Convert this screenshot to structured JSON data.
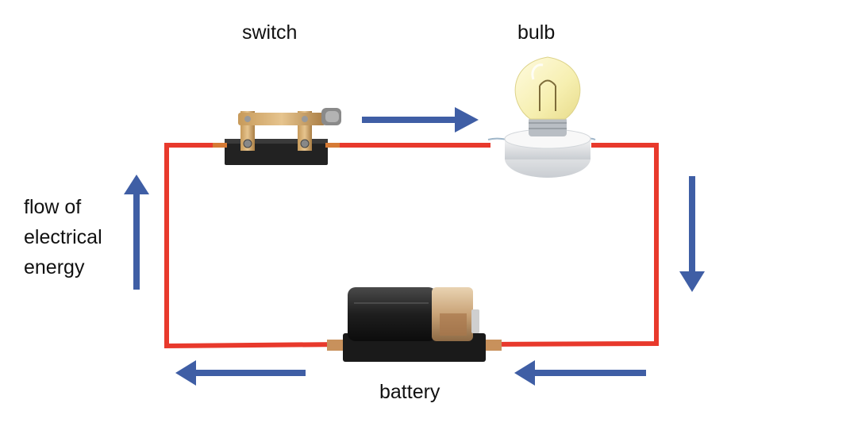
{
  "labels": {
    "switch": "switch",
    "bulb": "bulb",
    "battery": "battery",
    "flow_line1": "flow of",
    "flow_line2": "electrical",
    "flow_line3": "energy"
  },
  "colors": {
    "wire": "#e8392c",
    "arrow": "#3f5ea5",
    "text": "#111111"
  },
  "icons": {
    "switch": "knife-switch-icon",
    "bulb": "light-bulb-icon",
    "battery": "battery-icon",
    "arrow": "direction-arrow-icon"
  }
}
